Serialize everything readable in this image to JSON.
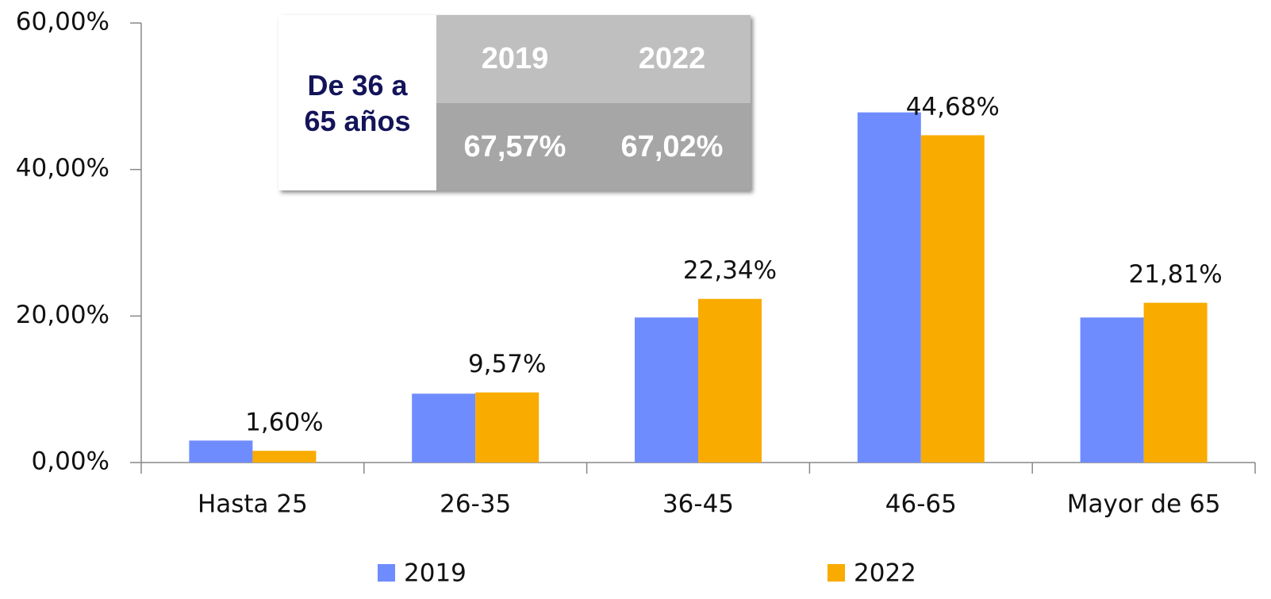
{
  "chart_data": {
    "type": "bar",
    "categories": [
      "Hasta 25",
      "26-35",
      "36-45",
      "46-65",
      "Mayor de 65"
    ],
    "series": [
      {
        "name": "2019",
        "color": "#6f8cff",
        "values": [
          3.0,
          9.4,
          19.8,
          47.8,
          19.8
        ]
      },
      {
        "name": "2022",
        "color": "#f9ab00",
        "values": [
          1.6,
          9.57,
          22.34,
          44.68,
          21.81
        ],
        "value_labels": [
          "1,60%",
          "9,57%",
          "22,34%",
          "44,68%",
          "21,81%"
        ]
      }
    ],
    "ylim": [
      0,
      60
    ],
    "yticks": [
      {
        "value": 0,
        "label": "0,00%"
      },
      {
        "value": 20,
        "label": "20,00%"
      },
      {
        "value": 40,
        "label": "40,00%"
      },
      {
        "value": 60,
        "label": "60,00%"
      }
    ],
    "grid": false,
    "legend": "bottom",
    "inset_table": {
      "row_label": "De 36 a 65 años",
      "columns": [
        "2019",
        "2022"
      ],
      "cells": [
        "67,57%",
        "67,02%"
      ]
    }
  }
}
